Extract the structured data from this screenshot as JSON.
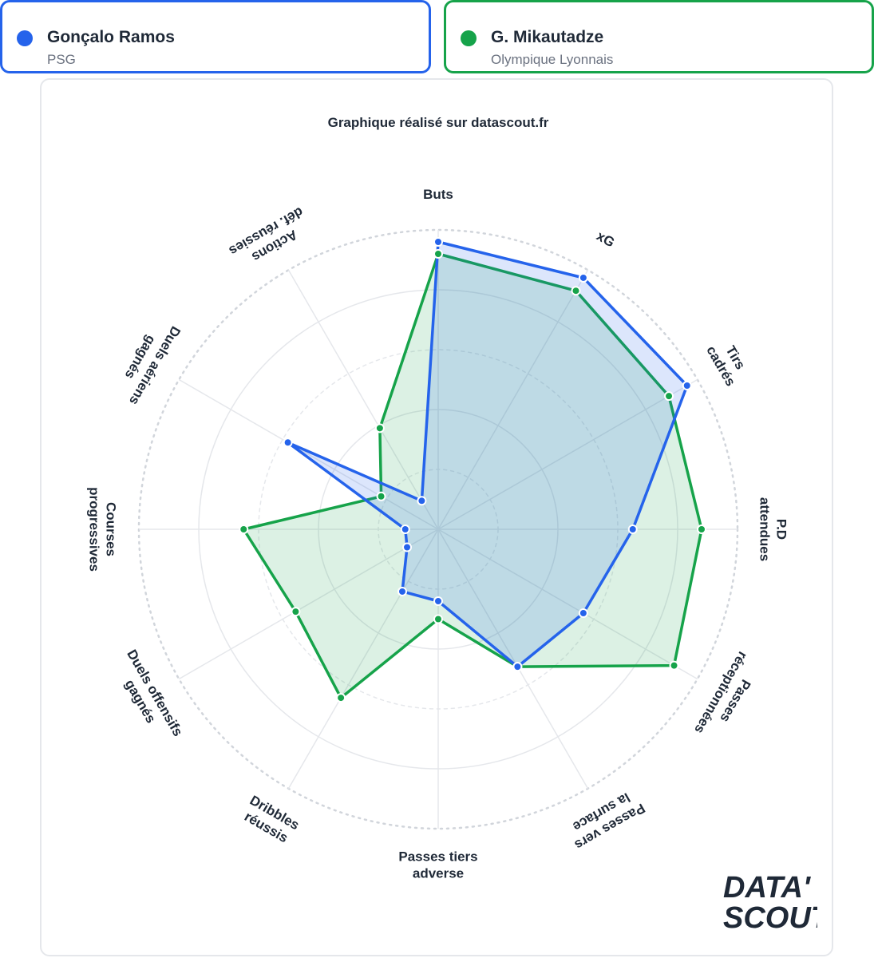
{
  "players": [
    {
      "name": "Gonçalo Ramos",
      "team": "PSG",
      "color": "#2563eb"
    },
    {
      "name": "G. Mikautadze",
      "team": "Olympique Lyonnais",
      "color": "#16a34a"
    }
  ],
  "chart_data": {
    "type": "radar",
    "title": "Graphique réalisé sur datascout.fr",
    "axes": [
      "Buts",
      "xG",
      "Tirs cadrés",
      "P.D attendues",
      "Passes réceptionnées",
      "Passes vers la surface",
      "Passes tiers adverse",
      "Dribbles réussis",
      "Duels offensifs gagnés",
      "Courses progressives",
      "Duels aériens gagnés",
      "Actions déf. réussies"
    ],
    "range": [
      0,
      100
    ],
    "grid": true,
    "series": [
      {
        "name": "Gonçalo Ramos",
        "color": "#2563eb",
        "values": [
          96,
          97,
          96,
          65,
          56,
          53,
          24,
          24,
          12,
          11,
          58,
          11
        ]
      },
      {
        "name": "G. Mikautadze",
        "color": "#16a34a",
        "values": [
          92,
          92,
          89,
          88,
          91,
          53,
          30,
          65,
          55,
          65,
          22,
          39
        ]
      }
    ]
  },
  "logo": {
    "line1": "DATA'",
    "line2": "SCOUT"
  }
}
